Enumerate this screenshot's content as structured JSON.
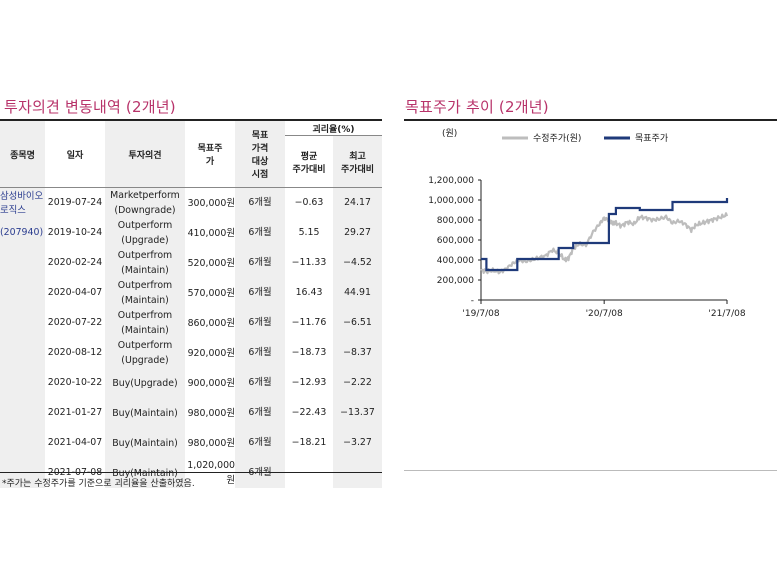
{
  "left": {
    "title": "투자의견 변동내역 (2개년)",
    "headers": {
      "stock": "종목명",
      "date": "일자",
      "opinion": "투자의견",
      "target": "목표주가",
      "period": "목표\n가격\n대상\n시점",
      "gap": "괴리율(%)",
      "avg": "평균\n주가대비",
      "max": "최고\n주가대비"
    },
    "stock_name": "삼성바이오\n로직스",
    "stock_code": "(207940)",
    "rows": [
      {
        "date": "2019-07-24",
        "opinion": "Marketperform\n(Downgrade)",
        "target": "300,000원",
        "period": "6개월",
        "avg": "-0.63",
        "max": "24.17"
      },
      {
        "date": "2019-10-24",
        "opinion": "Outperform\n(Upgrade)",
        "target": "410,000원",
        "period": "6개월",
        "avg": "5.15",
        "max": "29.27"
      },
      {
        "date": "2020-02-24",
        "opinion": "Outperfrom\n(Maintain)",
        "target": "520,000원",
        "period": "6개월",
        "avg": "-11.33",
        "max": "-4.52"
      },
      {
        "date": "2020-04-07",
        "opinion": "Outperfrom\n(Maintain)",
        "target": "570,000원",
        "period": "6개월",
        "avg": "16.43",
        "max": "44.91"
      },
      {
        "date": "2020-07-22",
        "opinion": "Outperfrom\n(Maintain)",
        "target": "860,000원",
        "period": "6개월",
        "avg": "-11.76",
        "max": "-6.51"
      },
      {
        "date": "2020-08-12",
        "opinion": "Outperform\n(Upgrade)",
        "target": "920,000원",
        "period": "6개월",
        "avg": "-18.73",
        "max": "-8.37"
      },
      {
        "date": "2020-10-22",
        "opinion": "Buy(Upgrade)",
        "target": "900,000원",
        "period": "6개월",
        "avg": "-12.93",
        "max": "-2.22"
      },
      {
        "date": "2021-01-27",
        "opinion": "Buy(Maintain)",
        "target": "980,000원",
        "period": "6개월",
        "avg": "-22.43",
        "max": "-13.37"
      },
      {
        "date": "2021-04-07",
        "opinion": "Buy(Maintain)",
        "target": "980,000원",
        "period": "6개월",
        "avg": "-18.21",
        "max": "-3.27"
      },
      {
        "date": "2021-07-08",
        "opinion": "Buy(Maintain)",
        "target": "1,020,000\n원",
        "period": "6개월",
        "avg": "",
        "max": ""
      }
    ],
    "footnote": "*주가는 수정주가를 기준으로 괴리율을 산출하였음."
  },
  "right": {
    "title": "목표주가 추이 (2개년)"
  },
  "chart_data": {
    "type": "line",
    "unit_label": "(원)",
    "x_ticks": [
      "'19/7/08",
      "'20/7/08",
      "'21/7/08"
    ],
    "y_ticks": [
      "1,200,000",
      "1,000,000",
      "800,000",
      "600,000",
      "400,000",
      "200,000",
      "-"
    ],
    "ylim": [
      0,
      1200000
    ],
    "colors": {
      "price": "#bdbdbd",
      "target": "#1f3a7a"
    },
    "series": [
      {
        "name": "수정주가(원)",
        "x": [
          "2019-07-08",
          "2019-07-24",
          "2019-08-12",
          "2019-09-02",
          "2019-09-20",
          "2019-10-10",
          "2019-10-28",
          "2019-11-15",
          "2019-12-05",
          "2019-12-24",
          "2020-01-15",
          "2020-02-05",
          "2020-02-24",
          "2020-03-13",
          "2020-03-24",
          "2020-04-07",
          "2020-04-24",
          "2020-05-15",
          "2020-06-05",
          "2020-06-24",
          "2020-07-08",
          "2020-07-22",
          "2020-08-03",
          "2020-08-12",
          "2020-08-28",
          "2020-09-15",
          "2020-10-05",
          "2020-10-22",
          "2020-11-10",
          "2020-11-30",
          "2020-12-18",
          "2021-01-08",
          "2021-01-27",
          "2021-02-15",
          "2021-03-05",
          "2021-03-24",
          "2021-04-07",
          "2021-04-26",
          "2021-05-14",
          "2021-06-02",
          "2021-06-21",
          "2021-07-08"
        ],
        "y": [
          300000,
          285000,
          295000,
          280000,
          310000,
          365000,
          400000,
          385000,
          400000,
          420000,
          440000,
          500000,
          470000,
          400000,
          420000,
          510000,
          560000,
          550000,
          680000,
          760000,
          820000,
          800000,
          760000,
          770000,
          740000,
          780000,
          760000,
          830000,
          820000,
          800000,
          810000,
          830000,
          770000,
          790000,
          760000,
          700000,
          750000,
          770000,
          790000,
          810000,
          830000,
          850000
        ]
      },
      {
        "name": "목표주가",
        "x": [
          "2019-07-08",
          "2019-07-24",
          "2019-10-24",
          "2020-02-24",
          "2020-04-07",
          "2020-07-22",
          "2020-08-12",
          "2020-10-22",
          "2021-01-27",
          "2021-04-07",
          "2021-07-08"
        ],
        "y": [
          410000,
          300000,
          410000,
          520000,
          570000,
          860000,
          920000,
          900000,
          980000,
          980000,
          1020000
        ]
      }
    ]
  }
}
